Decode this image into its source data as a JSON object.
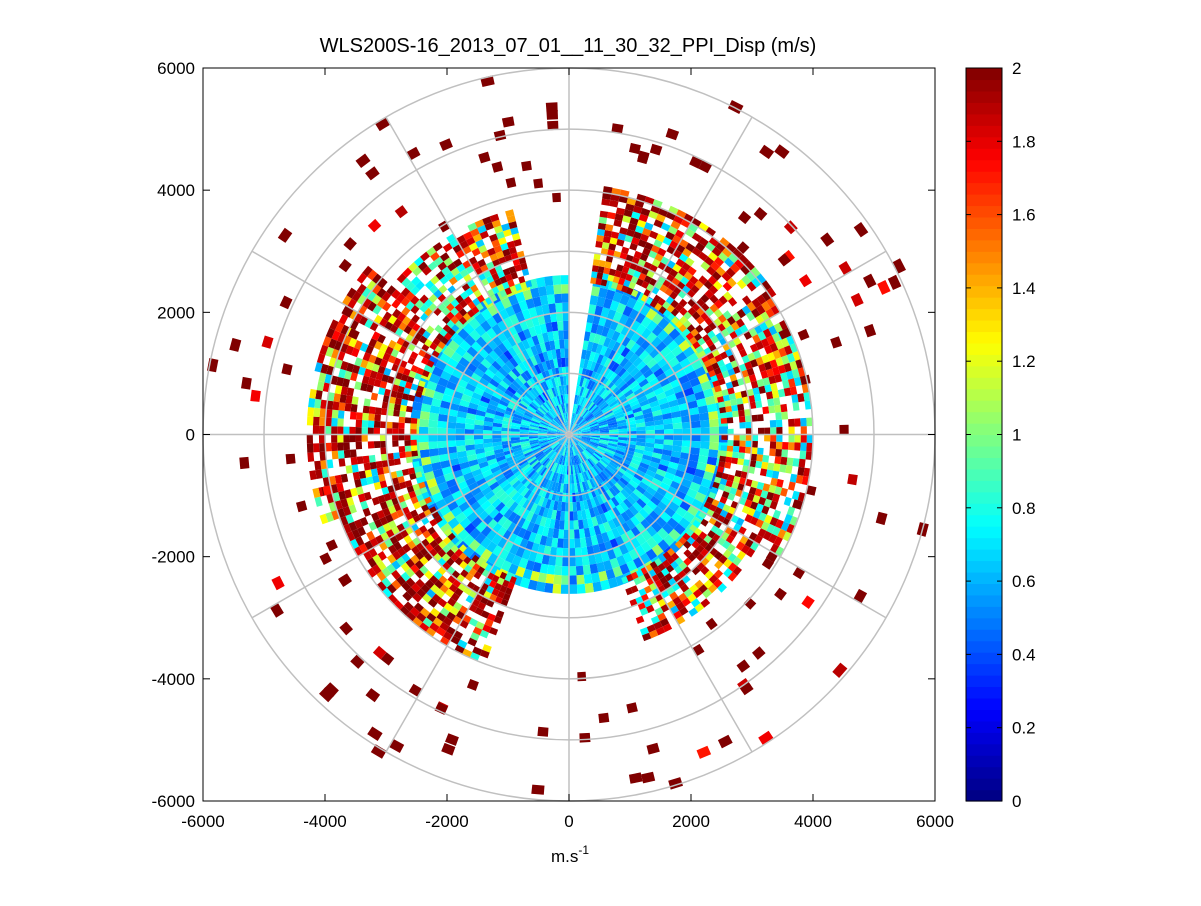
{
  "chart_data": {
    "type": "heatmap",
    "subtype": "polar-ppi",
    "title": "WLS200S-16_2013_07_01__11_30_32_PPI_Disp (m/s)",
    "xlabel": "m.s",
    "xlabel_superscript": "-1",
    "ylabel": "",
    "xlim": [
      -6000,
      6000
    ],
    "ylim": [
      -6000,
      6000
    ],
    "x_ticks": [
      -6000,
      -4000,
      -2000,
      0,
      2000,
      4000,
      6000
    ],
    "y_ticks": [
      -6000,
      -4000,
      -2000,
      0,
      2000,
      4000,
      6000
    ],
    "x_tick_labels": [
      "-6000",
      "-4000",
      "-2000",
      "0",
      "2000",
      "4000",
      "6000"
    ],
    "y_tick_labels": [
      "-6000",
      "-4000",
      "-2000",
      "0",
      "2000",
      "4000",
      "6000"
    ],
    "polar_grid": {
      "ring_radii": [
        1000,
        2000,
        3000,
        4000,
        5000,
        6000
      ],
      "spoke_angles_deg": [
        0,
        30,
        60,
        90,
        120,
        150,
        180,
        210,
        240,
        270,
        300,
        330
      ]
    },
    "scan": {
      "range_gate_m": 100,
      "azimuth_step_deg": 2,
      "max_range_m": 6000,
      "gap_azimuth_deg": [
        0,
        8
      ],
      "near_field_max_range_m": 2600,
      "near_field_value_range": [
        0.45,
        0.85
      ],
      "midfield_sectors": [
        {
          "name": "north-east",
          "azimuth_deg": [
            8,
            55
          ],
          "range_m": [
            2500,
            4100
          ],
          "high_fraction": 0.55
        },
        {
          "name": "east",
          "azimuth_deg": [
            55,
            120
          ],
          "range_m": [
            2500,
            4000
          ],
          "high_fraction": 0.3
        },
        {
          "name": "south-east",
          "azimuth_deg": [
            120,
            160
          ],
          "range_m": [
            2500,
            3600
          ],
          "high_fraction": 0.4
        },
        {
          "name": "south-west",
          "azimuth_deg": [
            200,
            250
          ],
          "range_m": [
            2500,
            4000
          ],
          "high_fraction": 0.55
        },
        {
          "name": "west",
          "azimuth_deg": [
            250,
            310
          ],
          "range_m": [
            2500,
            4300
          ],
          "high_fraction": 0.6
        },
        {
          "name": "north-west",
          "azimuth_deg": [
            310,
            345
          ],
          "range_m": [
            2500,
            3800
          ],
          "high_fraction": 0.35
        }
      ],
      "outer_scatter_value": 2.0,
      "outer_scatter_range_m": [
        3800,
        6000
      ]
    },
    "colorbar": {
      "colormap": "jet",
      "range": [
        0,
        2
      ],
      "ticks": [
        0,
        0.2,
        0.4,
        0.6,
        0.8,
        1,
        1.2,
        1.4,
        1.6,
        1.8,
        2
      ],
      "tick_labels": [
        "0",
        "0.2",
        "0.4",
        "0.6",
        "0.8",
        "1",
        "1.2",
        "1.4",
        "1.6",
        "1.8",
        "2"
      ]
    }
  }
}
